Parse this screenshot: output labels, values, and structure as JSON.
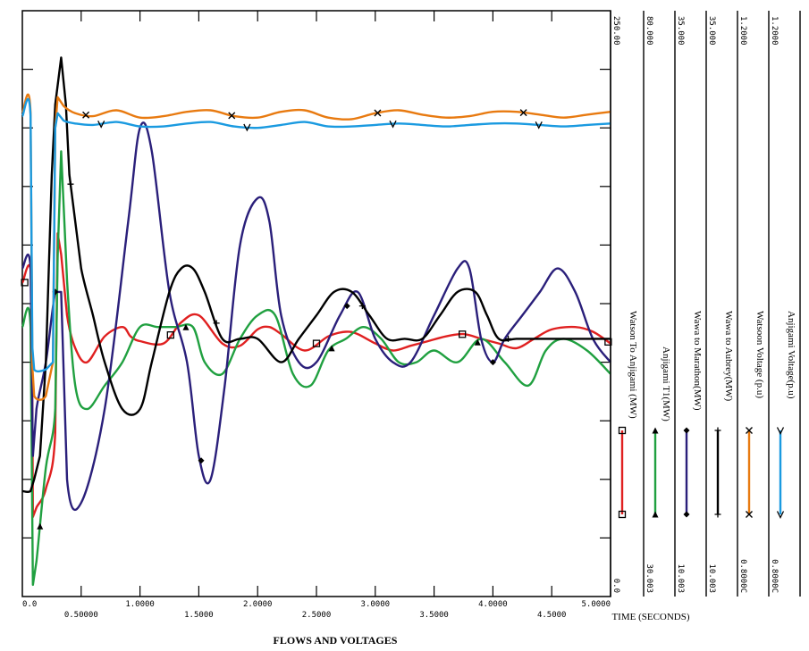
{
  "chart_data": {
    "type": "line",
    "title": "FLOWS AND VOLTAGES",
    "xlabel": "TIME (SECONDS)",
    "xlim": [
      0,
      5
    ],
    "x_ticks_lower": [
      "0.0",
      "1.0000",
      "2.0000",
      "3.0000",
      "4.0000",
      "5.0000"
    ],
    "x_ticks_upper": [
      "0.50000",
      "1.5000",
      "2.5000",
      "3.5000",
      "4.5000"
    ],
    "grid": false,
    "series": [
      {
        "name": "Watson To Anjigami (MW)",
        "color": "#e02020",
        "marker": "square",
        "scale_min": "0.0",
        "scale_max": "250.00",
        "ylim": [
          0,
          250
        ],
        "x": [
          0,
          0.08,
          0.09,
          0.12,
          0.2,
          0.28,
          0.3,
          0.33,
          0.38,
          0.45,
          0.55,
          0.7,
          0.85,
          0.92,
          1.0,
          1.2,
          1.35,
          1.5,
          1.7,
          1.85,
          2.0,
          2.1,
          2.2,
          2.4,
          2.6,
          2.75,
          2.85,
          3.0,
          3.15,
          3.3,
          3.45,
          3.6,
          3.75,
          3.9,
          4.05,
          4.2,
          4.35,
          4.5,
          4.7,
          4.85,
          5.0
        ],
        "y": [
          134,
          134,
          34,
          38,
          46,
          70,
          155,
          146,
          120,
          106,
          100,
          111,
          115,
          111,
          109,
          108,
          117,
          120,
          108,
          107,
          114,
          115,
          112,
          105,
          111,
          113,
          112,
          108,
          105,
          107,
          109,
          111,
          112,
          110,
          108,
          106,
          110,
          114,
          115,
          113,
          108
        ]
      },
      {
        "name": "Anjigami T1(MW)",
        "color": "#20a040",
        "marker": "triangle",
        "scale_min": "30.003",
        "scale_max": "80.000",
        "ylim": [
          30,
          80
        ],
        "x": [
          0,
          0.07,
          0.09,
          0.12,
          0.2,
          0.28,
          0.3,
          0.33,
          0.38,
          0.45,
          0.55,
          0.7,
          0.85,
          1.0,
          1.15,
          1.3,
          1.45,
          1.55,
          1.7,
          1.85,
          2.0,
          2.15,
          2.3,
          2.45,
          2.6,
          2.75,
          2.9,
          3.05,
          3.2,
          3.35,
          3.5,
          3.7,
          3.9,
          4.1,
          4.3,
          4.45,
          4.6,
          4.8,
          5.0
        ],
        "y": [
          53,
          53,
          31,
          33,
          41,
          46,
          59,
          68,
          57,
          48,
          46,
          48,
          50,
          53,
          53,
          53,
          53,
          50,
          49,
          52,
          54,
          54,
          49,
          48,
          51,
          52,
          53,
          52,
          50,
          50,
          51,
          50,
          52,
          50,
          48,
          51,
          52,
          51,
          49
        ]
      },
      {
        "name": "Wawa to Marathon(MW)",
        "color": "#2a1f7a",
        "marker": "diamond",
        "scale_min": "10.003",
        "scale_max": "35.000",
        "ylim": [
          10,
          35
        ],
        "x": [
          0,
          0.07,
          0.09,
          0.12,
          0.2,
          0.28,
          0.33,
          0.38,
          0.5,
          0.7,
          0.9,
          1.0,
          1.1,
          1.25,
          1.4,
          1.5,
          1.6,
          1.72,
          1.85,
          2.0,
          2.1,
          2.2,
          2.35,
          2.5,
          2.7,
          2.85,
          3.0,
          3.15,
          3.3,
          3.5,
          3.7,
          3.8,
          3.9,
          4.0,
          4.1,
          4.25,
          4.4,
          4.55,
          4.7,
          4.85,
          5.0
        ],
        "y": [
          24,
          24,
          16,
          18,
          20,
          23,
          23,
          15,
          14,
          18,
          26,
          30,
          29,
          23,
          20,
          16,
          15,
          19,
          25,
          27,
          26,
          22,
          20,
          20,
          22,
          23,
          21,
          20,
          20,
          22,
          24,
          24,
          21,
          20,
          21,
          22,
          23,
          24,
          23,
          21,
          20
        ]
      },
      {
        "name": "Wawa to Aubrey(MW)",
        "color": "#000000",
        "marker": "plus",
        "scale_min": "10.003",
        "scale_max": "35.000",
        "ylim": [
          10,
          35
        ],
        "x": [
          0,
          0.07,
          0.1,
          0.15,
          0.2,
          0.25,
          0.28,
          0.33,
          0.37,
          0.4,
          0.45,
          0.5,
          0.6,
          0.7,
          0.85,
          1.0,
          1.1,
          1.25,
          1.35,
          1.45,
          1.55,
          1.7,
          1.85,
          2.0,
          2.2,
          2.35,
          2.5,
          2.65,
          2.8,
          2.95,
          3.1,
          3.25,
          3.4,
          3.55,
          3.7,
          3.85,
          3.95,
          4.05,
          4.2,
          4.35,
          4.5,
          4.65,
          4.8,
          5.0
        ],
        "y": [
          14.5,
          14.5,
          15,
          16,
          20,
          28,
          31,
          33,
          31,
          28,
          26,
          24,
          22,
          20,
          18,
          18,
          20,
          23,
          24,
          24,
          23,
          21,
          21,
          21,
          20,
          21,
          22,
          23,
          23,
          22,
          21,
          21,
          21,
          22,
          23,
          23,
          22,
          21,
          21,
          21,
          21,
          21,
          21,
          21
        ]
      },
      {
        "name": "Watsoon Voltage (p.u)",
        "color": "#e87a10",
        "marker": "cross",
        "scale_min": "0.8000C",
        "scale_max": "1.2000",
        "ylim": [
          0.8,
          1.2
        ],
        "x": [
          0,
          0.07,
          0.085,
          0.1,
          0.2,
          0.26,
          0.28,
          0.3,
          0.35,
          0.45,
          0.6,
          0.8,
          1.0,
          1.2,
          1.4,
          1.6,
          1.8,
          2.0,
          2.2,
          2.4,
          2.6,
          2.8,
          3.0,
          3.2,
          3.4,
          3.6,
          3.8,
          4.0,
          4.2,
          4.4,
          4.6,
          4.8,
          5.0
        ],
        "y": [
          1.13,
          1.13,
          0.957,
          0.937,
          0.937,
          0.96,
          1.12,
          1.141,
          1.135,
          1.13,
          1.128,
          1.132,
          1.127,
          1.128,
          1.131,
          1.132,
          1.128,
          1.127,
          1.131,
          1.132,
          1.127,
          1.126,
          1.13,
          1.132,
          1.129,
          1.127,
          1.128,
          1.131,
          1.131,
          1.129,
          1.127,
          1.129,
          1.131
        ]
      },
      {
        "name": "Anjigami Voltage(p.u)",
        "color": "#1a9ae0",
        "marker": "down-arrow",
        "scale_min": "0.8000C",
        "scale_max": "1.2000",
        "ylim": [
          0.8,
          1.2
        ],
        "x": [
          0,
          0.07,
          0.085,
          0.1,
          0.2,
          0.26,
          0.28,
          0.3,
          0.35,
          0.45,
          0.6,
          0.8,
          1.0,
          1.2,
          1.4,
          1.6,
          1.8,
          2.0,
          2.2,
          2.4,
          2.6,
          2.8,
          3.0,
          3.2,
          3.4,
          3.6,
          3.8,
          4.0,
          4.2,
          4.4,
          4.6,
          4.8,
          5.0
        ],
        "y": [
          1.128,
          1.128,
          0.97,
          0.955,
          0.955,
          0.96,
          1.12,
          1.13,
          1.125,
          1.123,
          1.122,
          1.124,
          1.121,
          1.121,
          1.123,
          1.124,
          1.121,
          1.12,
          1.122,
          1.124,
          1.121,
          1.121,
          1.122,
          1.123,
          1.122,
          1.121,
          1.122,
          1.123,
          1.123,
          1.122,
          1.121,
          1.122,
          1.123
        ]
      }
    ]
  }
}
